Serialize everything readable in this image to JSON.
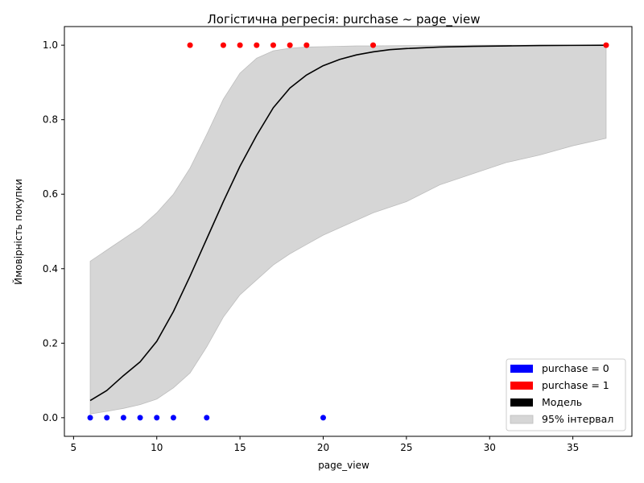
{
  "chart_data": {
    "type": "scatter",
    "title": "Логістична регресія: purchase ~ page_view",
    "xlabel": "page_view",
    "ylabel": "Ймовірність покупки",
    "xlim": [
      4.45,
      38.55
    ],
    "ylim": [
      -0.05,
      1.05
    ],
    "xticks": [
      5,
      10,
      15,
      20,
      25,
      30,
      35
    ],
    "yticks": [
      0.0,
      0.2,
      0.4,
      0.6,
      0.8,
      1.0
    ],
    "xtick_labels": [
      "5",
      "10",
      "15",
      "20",
      "25",
      "30",
      "35"
    ],
    "ytick_labels": [
      "0.0",
      "0.2",
      "0.4",
      "0.6",
      "0.8",
      "1.0"
    ],
    "grid": false,
    "legend_position": "bottom-right",
    "series": [
      {
        "name": "purchase = 0",
        "kind": "points",
        "color": "#0000ff",
        "x": [
          6,
          7,
          8,
          9,
          10,
          11,
          13,
          20
        ],
        "y": [
          0,
          0,
          0,
          0,
          0,
          0,
          0,
          0
        ]
      },
      {
        "name": "purchase = 1",
        "kind": "points",
        "color": "#ff0000",
        "x": [
          12,
          14,
          15,
          16,
          17,
          18,
          19,
          23,
          37
        ],
        "y": [
          1,
          1,
          1,
          1,
          1,
          1,
          1,
          1,
          1
        ]
      },
      {
        "name": "Модель",
        "kind": "line",
        "color": "#000000",
        "x": [
          6,
          7,
          8,
          9,
          10,
          11,
          12,
          13,
          14,
          15,
          16,
          17,
          18,
          19,
          20,
          21,
          22,
          23,
          24,
          25,
          27,
          29,
          31,
          33,
          35,
          37
        ],
        "y": [
          0.046,
          0.073,
          0.113,
          0.15,
          0.205,
          0.285,
          0.38,
          0.48,
          0.58,
          0.675,
          0.758,
          0.832,
          0.885,
          0.92,
          0.945,
          0.962,
          0.974,
          0.982,
          0.988,
          0.991,
          0.995,
          0.997,
          0.998,
          0.999,
          0.9995,
          1.0
        ]
      },
      {
        "name": "95% інтервал",
        "kind": "band",
        "color": "#d6d6d6",
        "x": [
          6,
          7,
          8,
          9,
          10,
          11,
          12,
          13,
          14,
          15,
          16,
          17,
          18,
          19,
          20,
          21,
          22,
          23,
          25,
          27,
          29,
          31,
          33,
          35,
          37
        ],
        "lower": [
          0.01,
          0.017,
          0.025,
          0.035,
          0.05,
          0.08,
          0.12,
          0.19,
          0.27,
          0.33,
          0.37,
          0.41,
          0.44,
          0.465,
          0.49,
          0.51,
          0.53,
          0.55,
          0.58,
          0.625,
          0.655,
          0.685,
          0.705,
          0.73,
          0.75
        ],
        "upper": [
          0.42,
          0.45,
          0.48,
          0.51,
          0.55,
          0.6,
          0.67,
          0.76,
          0.855,
          0.925,
          0.965,
          0.985,
          0.992,
          0.995,
          0.996,
          0.997,
          0.998,
          0.998,
          0.999,
          0.999,
          1.0,
          1.0,
          1.0,
          1.0,
          1.0
        ]
      }
    ]
  }
}
